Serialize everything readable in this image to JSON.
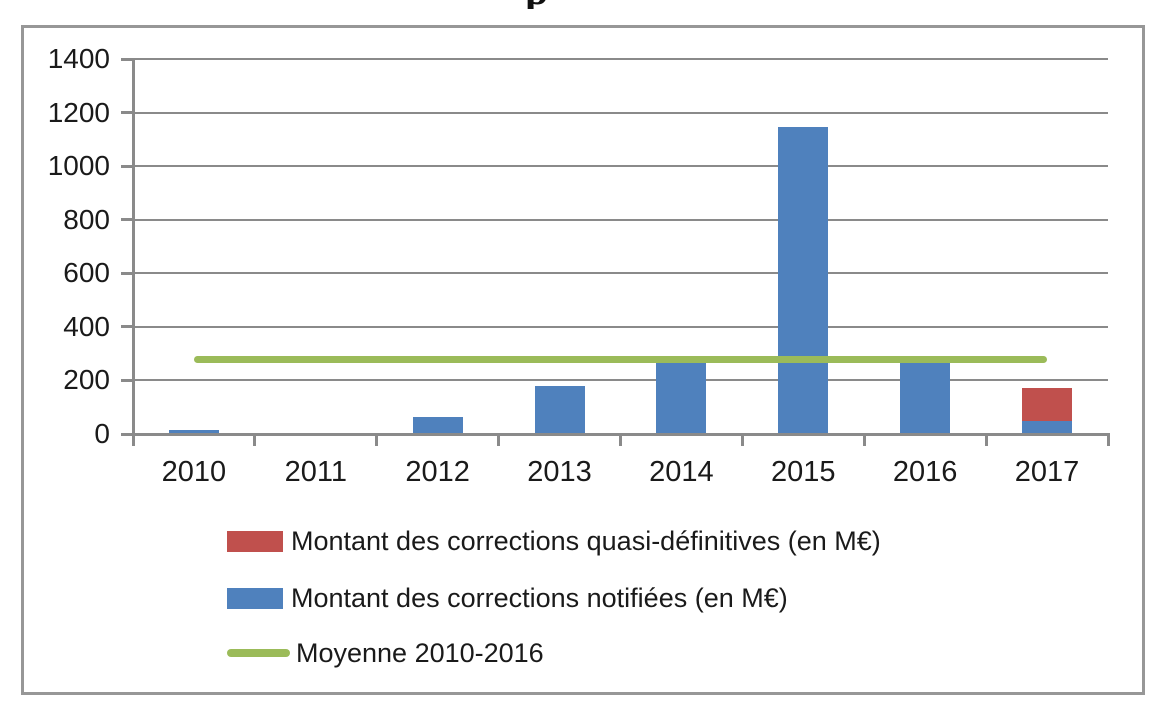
{
  "title_fragment": "p",
  "colors": {
    "blue": "#4F81BD",
    "red": "#C0504D",
    "green": "#9BBB59",
    "grid": "#8A8A8A",
    "axis": "#8A8A8A",
    "border": "#979797",
    "text": "#1a1a1a"
  },
  "legend": {
    "items": [
      {
        "label": "Montant des corrections quasi-définitives (en M€)",
        "swatch": "rect",
        "color_key": "red"
      },
      {
        "label": "Montant des corrections notifiées (en M€)",
        "swatch": "rect",
        "color_key": "blue"
      },
      {
        "label": "Moyenne 2010-2016",
        "swatch": "line",
        "color_key": "green"
      }
    ]
  },
  "chart_data": {
    "type": "bar",
    "categories": [
      "2010",
      "2011",
      "2012",
      "2013",
      "2014",
      "2015",
      "2016",
      "2017"
    ],
    "series": [
      {
        "name": "Montant des corrections notifiées (en M€)",
        "type": "bar",
        "color": "#4F81BD",
        "values": [
          15,
          0,
          62,
          180,
          265,
          1148,
          265,
          50
        ]
      },
      {
        "name": "Montant des corrections quasi-définitives (en M€)",
        "type": "bar-stacked",
        "color": "#C0504D",
        "values": [
          0,
          0,
          0,
          0,
          0,
          0,
          0,
          120
        ]
      },
      {
        "name": "Moyenne 2010-2016",
        "type": "line",
        "color": "#9BBB59",
        "value": 280
      }
    ],
    "title": "",
    "xlabel": "",
    "ylabel": "",
    "ylim": [
      0,
      1400
    ],
    "ytick_step": 200,
    "yticks": [
      "0",
      "200",
      "400",
      "600",
      "800",
      "1000",
      "1200",
      "1400"
    ],
    "grid": true,
    "legend_position": "bottom-left"
  }
}
